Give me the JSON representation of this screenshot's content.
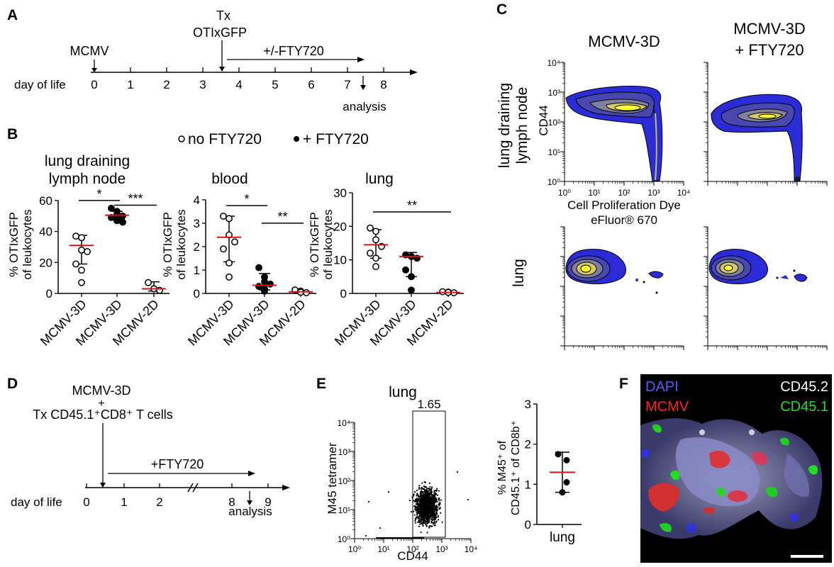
{
  "panels": {
    "A": {
      "letter": "A",
      "label_mcmv": "MCMV",
      "label_tx": "Tx",
      "label_otixgfp": "OTIxGFP",
      "label_fty": "+/-FTY720",
      "axis_label": "day of life",
      "ticks": [
        "0",
        "1",
        "2",
        "3",
        "4",
        "5",
        "6",
        "7",
        "8"
      ],
      "analysis": "analysis"
    },
    "B": {
      "letter": "B",
      "legend_open": "no FTY720",
      "legend_filled": "+ FTY720",
      "y_label_1": "% OTIxGFP",
      "y_label_2": "of leukocytes"
    },
    "C": {
      "letter": "C",
      "col1_title": "MCMV-3D",
      "col2_title_line1": "MCMV-3D",
      "col2_title_line2": "+ FTY720",
      "row1_label_line1": "lung draining",
      "row1_label_line2": "lymph node",
      "row2_label": "lung",
      "y_axis_label": "CD44",
      "x_axis_label_line1": "Cell Proliferation Dye",
      "x_axis_label_line2": "eFluor® 670",
      "y_ticks": [
        "10⁰",
        "10¹",
        "10²",
        "10³",
        "10⁴"
      ],
      "x_ticks": [
        "10⁰",
        "10¹",
        "10²",
        "10³",
        "10⁴"
      ]
    },
    "D": {
      "letter": "D",
      "label_mcmv": "MCMV-3D",
      "label_plus": "+",
      "label_tx": "Tx CD45.1⁺CD8⁺ T cells",
      "label_fty": "+FTY720",
      "axis_label": "day of life",
      "ticks": [
        "0",
        "1",
        "2",
        "8",
        "9"
      ],
      "analysis": "analysis"
    },
    "E": {
      "letter": "E",
      "title": "lung",
      "gate_value": "1.65",
      "y_axis_label": "M45 tetramer",
      "x_axis_label": "CD44",
      "y_ticks": [
        "10⁰",
        "10¹",
        "10²",
        "10³",
        "10⁴"
      ],
      "x_ticks": [
        "10⁰",
        "10¹",
        "10²",
        "10³",
        "10⁴"
      ],
      "summary_y_label_line1": "% M45⁺ of",
      "summary_y_label_line2": "CD45.1⁺ of CD8b⁺",
      "summary_category": "lung"
    },
    "F": {
      "letter": "F",
      "labels": {
        "dapi": "DAPI",
        "mcmv": "MCMV",
        "cd452": "CD45.2",
        "cd451": "CD45.1"
      },
      "colors": {
        "dapi": "#5a5aff",
        "mcmv": "#ff2020",
        "cd452": "#ffffff",
        "cd451": "#22dd22"
      }
    }
  },
  "chart_data": [
    {
      "type": "scatter",
      "panel": "B",
      "title": "lung draining\nlymph node",
      "ylabel": "% OTIxGFP of leukocytes",
      "ylim": [
        0,
        65
      ],
      "yticks": [
        0,
        20,
        40,
        60
      ],
      "categories": [
        "MCMV-3D",
        "MCMV-3D",
        "MCMV-2D"
      ],
      "fty720": [
        false,
        true,
        false
      ],
      "points": [
        [
          37,
          36,
          28,
          27,
          19,
          15,
          7
        ],
        [
          55,
          53,
          51,
          50,
          49,
          48,
          47,
          46
        ],
        [
          7,
          3,
          3,
          2
        ]
      ],
      "median": [
        31,
        50.5,
        3
      ],
      "error": [
        [
          19,
          37.5
        ],
        [
          48,
          53
        ],
        [
          1.5,
          7.5
        ]
      ],
      "significance": [
        {
          "from": 0,
          "to": 1,
          "label": "*",
          "y": 60
        },
        {
          "from": 1,
          "to": 2,
          "label": "***",
          "y": 57
        }
      ]
    },
    {
      "type": "scatter",
      "panel": "B",
      "title": "blood",
      "ylabel": "% OTIxGFP of leukocytes",
      "ylim": [
        0,
        4.3
      ],
      "yticks": [
        0,
        1,
        2,
        3,
        4
      ],
      "categories": [
        "MCMV-3D",
        "MCMV-3D",
        "MCMV-2D"
      ],
      "fty720": [
        false,
        true,
        false
      ],
      "points": [
        [
          3.3,
          3.2,
          2.5,
          2.2,
          1.9,
          1.3,
          0.7
        ],
        [
          1.1,
          0.7,
          0.5,
          0.4,
          0.3,
          0.2,
          0.1
        ],
        [
          0.15,
          0.1,
          0.05,
          0.03
        ]
      ],
      "median": [
        2.4,
        0.35,
        0.07
      ],
      "error": [
        [
          1.35,
          3.3
        ],
        [
          0.15,
          0.85
        ],
        [
          0.03,
          0.12
        ]
      ],
      "significance": [
        {
          "from": 0,
          "to": 1,
          "label": "*",
          "y": 3.75
        },
        {
          "from": 1,
          "to": 2,
          "label": "**",
          "y": 3.0
        }
      ]
    },
    {
      "type": "scatter",
      "panel": "B",
      "title": "lung",
      "ylabel": "% OTIxGFP of leukocytes",
      "ylim": [
        0,
        30
      ],
      "yticks": [
        0,
        10,
        20,
        30
      ],
      "categories": [
        "MCMV-3D",
        "MCMV-3D",
        "MCMV-2D"
      ],
      "fty720": [
        false,
        true,
        false
      ],
      "points": [
        [
          19.5,
          18.5,
          16,
          14,
          12,
          10.5,
          8
        ],
        [
          11.5,
          11,
          11,
          10.5,
          7,
          5,
          1
        ],
        [
          0.5,
          0.4,
          0.3,
          0.2
        ]
      ],
      "median": [
        14.5,
        11,
        0.3
      ],
      "error": [
        [
          10.5,
          19
        ],
        [
          5,
          12.2
        ],
        [
          0.1,
          0.5
        ]
      ],
      "significance": [
        {
          "from": 0,
          "to": 2,
          "label": "**",
          "y": 24.3
        }
      ]
    },
    {
      "type": "scatter",
      "panel": "E",
      "title": "",
      "ylabel": "% M45⁺ of CD45.1⁺ of CD8b⁺",
      "ylim": [
        0,
        3
      ],
      "yticks": [
        0,
        1,
        2,
        3
      ],
      "categories": [
        "lung"
      ],
      "points": [
        [
          1.75,
          1.6,
          1.05,
          0.8
        ]
      ],
      "median": [
        1.3
      ],
      "error": [
        [
          0.8,
          1.8
        ]
      ]
    }
  ]
}
